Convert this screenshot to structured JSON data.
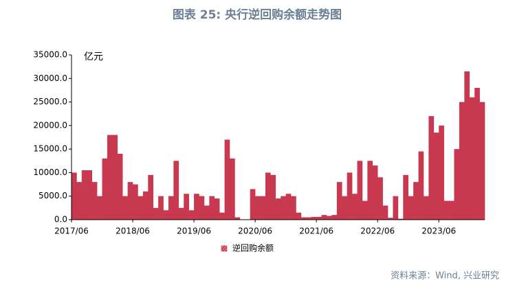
{
  "chart_data": {
    "type": "bar",
    "title": "图表 25: 央行逆回购余额走势图",
    "y_axis_label": "亿元",
    "source": "资料来源：Wind, 兴业研究",
    "categories": [
      "2017/06",
      null,
      null,
      null,
      null,
      null,
      null,
      null,
      null,
      null,
      null,
      null,
      "2018/06",
      null,
      null,
      null,
      null,
      null,
      null,
      null,
      null,
      null,
      null,
      null,
      "2019/06",
      null,
      null,
      null,
      null,
      null,
      null,
      null,
      null,
      null,
      null,
      null,
      "2020/06",
      null,
      null,
      null,
      null,
      null,
      null,
      null,
      null,
      null,
      null,
      null,
      "2021/06",
      null,
      null,
      null,
      null,
      null,
      null,
      null,
      null,
      null,
      null,
      null,
      "2022/06",
      null,
      null,
      null,
      null,
      null,
      null,
      null,
      null,
      null,
      null,
      null,
      "2023/06",
      null,
      null,
      null,
      null,
      null,
      null,
      null,
      null
    ],
    "series": [
      {
        "name": "逆回购余额",
        "color": "#c8394f",
        "values": [
          10000,
          8000,
          10500,
          10500,
          8000,
          5000,
          13000,
          18000,
          18000,
          14000,
          5000,
          8000,
          7500,
          5000,
          6000,
          9500,
          2500,
          5000,
          2000,
          5000,
          12500,
          2500,
          5500,
          2000,
          5500,
          5000,
          3000,
          5000,
          4500,
          1500,
          17000,
          13000,
          500,
          0,
          0,
          6500,
          5000,
          5000,
          10000,
          9500,
          4500,
          5000,
          5500,
          5000,
          1500,
          500,
          500,
          600,
          600,
          1000,
          800,
          1000,
          8000,
          5000,
          10000,
          5500,
          12500,
          4000,
          12500,
          11500,
          9000,
          3000,
          400,
          5000,
          200,
          9500,
          5000,
          8000,
          14500,
          5000,
          22000,
          18500,
          20000,
          4000,
          4000,
          15000,
          25000,
          31500,
          26000,
          28000,
          25000
        ]
      }
    ],
    "ylim": [
      0,
      35000
    ],
    "yticks": [
      {
        "value": 0,
        "label": "0.0"
      },
      {
        "value": 5000,
        "label": "5000.0"
      },
      {
        "value": 10000,
        "label": "10000.0"
      },
      {
        "value": 15000,
        "label": "15000.0"
      },
      {
        "value": 20000,
        "label": "20000.0"
      },
      {
        "value": 25000,
        "label": "25000.0"
      },
      {
        "value": 30000,
        "label": "30000.0"
      },
      {
        "value": 35000,
        "label": "35000.0"
      }
    ],
    "grid": false
  }
}
